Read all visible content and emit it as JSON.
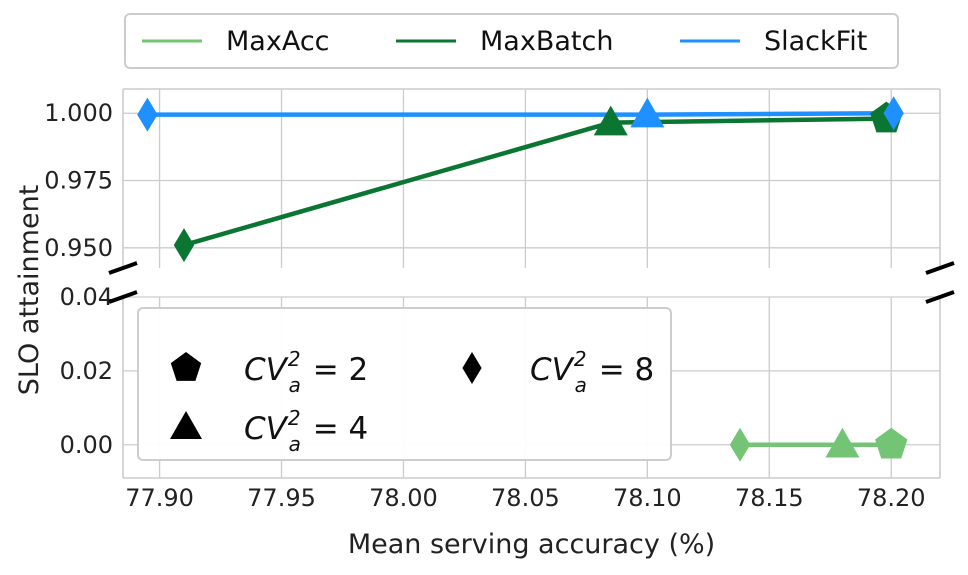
{
  "chart_data": {
    "type": "line",
    "xlabel": "Mean serving accuracy (%)",
    "ylabel": "SLO attainment",
    "xlim": [
      77.885,
      78.22
    ],
    "xticks": [
      "77.90",
      "77.95",
      "78.00",
      "78.05",
      "78.10",
      "78.15",
      "78.20"
    ],
    "xtick_values": [
      77.9,
      77.95,
      78.0,
      78.05,
      78.1,
      78.15,
      78.2
    ],
    "broken_y_axis": true,
    "upper_panel": {
      "ylim": [
        0.9425,
        1.009
      ],
      "yticks": [
        "0.950",
        "0.975",
        "1.000"
      ],
      "ytick_values": [
        0.95,
        0.975,
        1.0
      ]
    },
    "lower_panel": {
      "ylim": [
        -0.009,
        0.04
      ],
      "yticks": [
        "0.00",
        "0.02",
        "0.04"
      ],
      "ytick_values": [
        0.0,
        0.02,
        0.04
      ]
    },
    "grid": true,
    "series_legend": {
      "placement": "top, outside",
      "entries": [
        {
          "label": "MaxAcc",
          "color": "#74c476"
        },
        {
          "label": "MaxBatch",
          "color": "#0b7532"
        },
        {
          "label": "SlackFit",
          "color": "#1e90ff"
        }
      ]
    },
    "marker_legend": {
      "placement": "lower-left of lower panel",
      "entries": [
        {
          "marker": "pentagon",
          "var": "CV",
          "sup": "2",
          "sub": "a",
          "rest": " = 2"
        },
        {
          "marker": "triangle",
          "var": "CV",
          "sup": "2",
          "sub": "a",
          "rest": " = 4"
        },
        {
          "marker": "diamond",
          "var": "CV",
          "sup": "2",
          "sub": "a",
          "rest": " = 8"
        }
      ]
    },
    "series": [
      {
        "name": "MaxAcc",
        "color": "#74c476",
        "panel": "lower",
        "points": [
          {
            "x": 78.138,
            "y": 0.0,
            "marker": "diamond"
          },
          {
            "x": 78.18,
            "y": 0.0,
            "marker": "triangle"
          },
          {
            "x": 78.2,
            "y": 0.0,
            "marker": "pentagon"
          }
        ]
      },
      {
        "name": "MaxBatch",
        "color": "#0b7532",
        "panel": "upper",
        "points": [
          {
            "x": 77.91,
            "y": 0.951,
            "marker": "diamond"
          },
          {
            "x": 78.085,
            "y": 0.9965,
            "marker": "triangle"
          },
          {
            "x": 78.198,
            "y": 0.998,
            "marker": "pentagon"
          }
        ]
      },
      {
        "name": "SlackFit",
        "color": "#1e90ff",
        "panel": "upper",
        "points": [
          {
            "x": 77.895,
            "y": 0.9995,
            "marker": "diamond"
          },
          {
            "x": 78.1,
            "y": 0.9995,
            "marker": "triangle"
          },
          {
            "x": 78.201,
            "y": 1.0,
            "marker": "diamond"
          }
        ]
      }
    ]
  }
}
